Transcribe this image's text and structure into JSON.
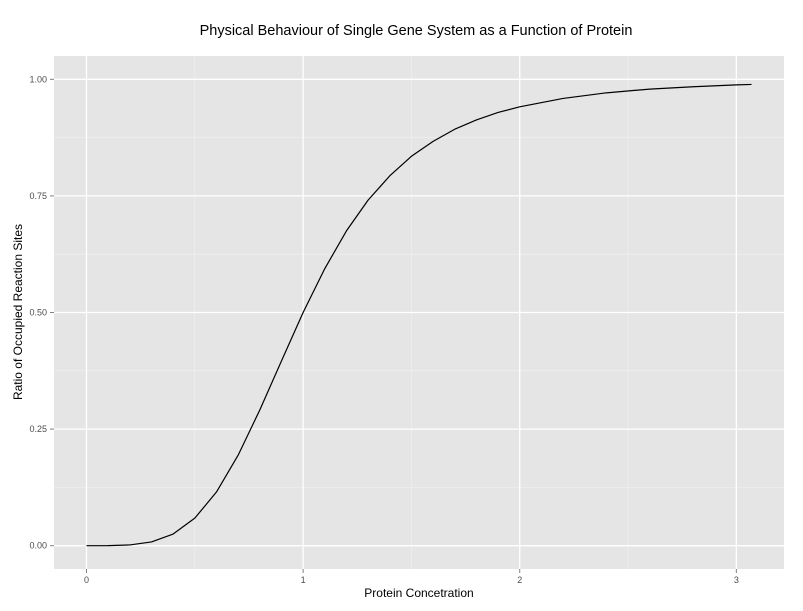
{
  "chart_data": {
    "type": "line",
    "title": "Physical Behaviour of Single Gene System as a Function of Protein",
    "xlabel": "Protein Concetration",
    "ylabel": "Ratio of Occupied Reaction Sites",
    "xlim": [
      -0.15,
      3.22
    ],
    "ylim": [
      -0.05,
      1.05
    ],
    "x_ticks": [
      0,
      1,
      2,
      3
    ],
    "x_tick_labels": [
      "0",
      "1",
      "2",
      "3"
    ],
    "y_ticks": [
      0,
      0.25,
      0.5,
      0.75,
      1
    ],
    "y_tick_labels": [
      "0.00",
      "0.25",
      "0.50",
      "0.75",
      "1.00"
    ],
    "grid": true,
    "panel_background": "#e5e5e5",
    "grid_color": "#ffffff",
    "line_color": "#000000",
    "series": [
      {
        "x": [
          0,
          0.1,
          0.2,
          0.3,
          0.4,
          0.5,
          0.6,
          0.7,
          0.8,
          0.9,
          1.0,
          1.1,
          1.2,
          1.3,
          1.4,
          1.5,
          1.6,
          1.7,
          1.8,
          1.9,
          2.0,
          2.2,
          2.4,
          2.6,
          2.8,
          3.0,
          3.07
        ],
        "y": [
          0,
          0.0001,
          0.0016,
          0.008,
          0.025,
          0.059,
          0.115,
          0.194,
          0.291,
          0.396,
          0.5,
          0.594,
          0.675,
          0.741,
          0.793,
          0.835,
          0.867,
          0.893,
          0.913,
          0.929,
          0.941,
          0.959,
          0.971,
          0.979,
          0.984,
          0.988,
          0.989
        ]
      }
    ]
  }
}
